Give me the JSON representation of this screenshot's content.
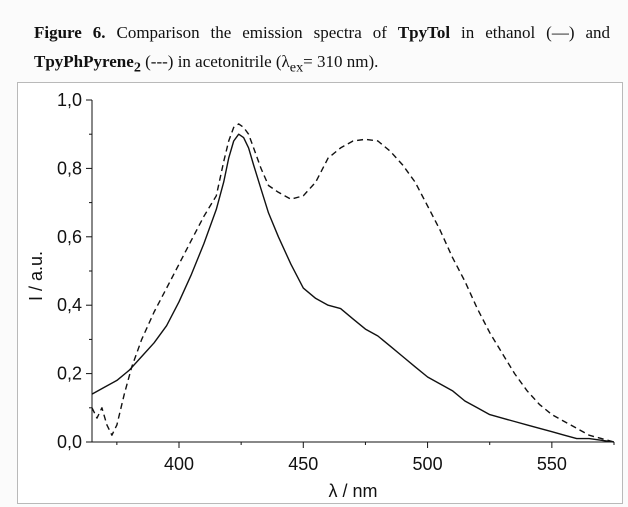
{
  "caption": {
    "figure_label": "Figure 6.",
    "text_1": " Comparison the emission spectra of ",
    "compound_1": "TpyTol",
    "text_2": " in ethanol (—) and ",
    "compound_2": "TpyPhPyrene",
    "compound_2_subscript": "2",
    "text_3": " (---) in acetonitrile (λ",
    "lambda_subscript": "ex",
    "text_4": "= 310 nm)."
  },
  "chart_data": {
    "type": "line",
    "title": "",
    "xlabel": "λ / nm",
    "ylabel": "I / a.u.",
    "xlim": [
      365,
      575
    ],
    "ylim": [
      0,
      1.0
    ],
    "xticks": [
      400,
      450,
      500,
      550
    ],
    "xtick_labels": [
      "400",
      "450",
      "500",
      "550"
    ],
    "yticks": [
      0,
      0.2,
      0.4,
      0.6,
      0.8,
      1.0
    ],
    "ytick_labels": [
      "0,0",
      "0,2",
      "0,4",
      "0,6",
      "0,8",
      "1,0"
    ],
    "series": [
      {
        "name": "TpyTol in ethanol",
        "style": "solid",
        "x": [
          365,
          370,
          375,
          380,
          385,
          390,
          395,
          400,
          405,
          410,
          415,
          418,
          420,
          422,
          424,
          426,
          428,
          430,
          433,
          436,
          440,
          445,
          450,
          455,
          460,
          465,
          470,
          475,
          480,
          485,
          490,
          495,
          500,
          505,
          510,
          515,
          520,
          525,
          530,
          535,
          540,
          545,
          550,
          555,
          560,
          565,
          570,
          575
        ],
        "y": [
          0.14,
          0.16,
          0.18,
          0.21,
          0.25,
          0.29,
          0.34,
          0.41,
          0.49,
          0.58,
          0.68,
          0.76,
          0.83,
          0.88,
          0.9,
          0.89,
          0.86,
          0.81,
          0.74,
          0.67,
          0.6,
          0.52,
          0.45,
          0.42,
          0.4,
          0.39,
          0.36,
          0.33,
          0.31,
          0.28,
          0.25,
          0.22,
          0.19,
          0.17,
          0.15,
          0.12,
          0.1,
          0.08,
          0.07,
          0.06,
          0.05,
          0.04,
          0.03,
          0.02,
          0.01,
          0.01,
          0.005,
          0.0
        ]
      },
      {
        "name": "TpyPhPyrene2 in acetonitrile",
        "style": "dashed",
        "x": [
          365,
          367,
          369,
          371,
          373,
          375,
          378,
          381,
          385,
          390,
          395,
          400,
          405,
          410,
          415,
          418,
          420,
          422,
          424,
          426,
          428,
          430,
          433,
          436,
          440,
          445,
          450,
          455,
          460,
          465,
          470,
          475,
          480,
          485,
          490,
          495,
          500,
          505,
          510,
          515,
          520,
          525,
          530,
          535,
          540,
          545,
          550,
          555,
          560,
          565,
          570,
          575
        ],
        "y": [
          0.1,
          0.07,
          0.1,
          0.05,
          0.02,
          0.05,
          0.14,
          0.22,
          0.3,
          0.38,
          0.45,
          0.52,
          0.59,
          0.66,
          0.72,
          0.82,
          0.88,
          0.92,
          0.93,
          0.92,
          0.9,
          0.86,
          0.8,
          0.75,
          0.73,
          0.71,
          0.72,
          0.76,
          0.83,
          0.86,
          0.88,
          0.885,
          0.88,
          0.85,
          0.81,
          0.76,
          0.69,
          0.62,
          0.54,
          0.47,
          0.39,
          0.32,
          0.26,
          0.2,
          0.15,
          0.11,
          0.08,
          0.06,
          0.04,
          0.02,
          0.01,
          0.0
        ]
      }
    ]
  }
}
